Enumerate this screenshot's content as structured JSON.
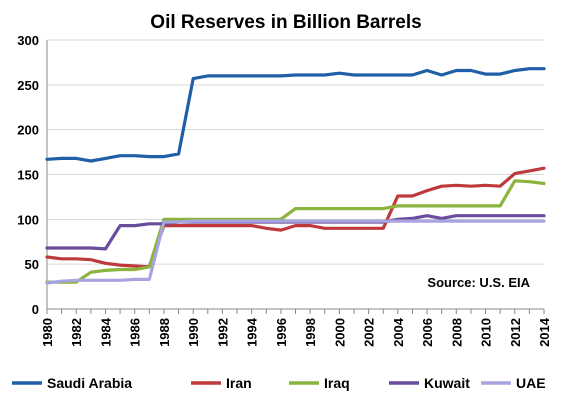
{
  "chart_data": {
    "type": "line",
    "title": "Oil Reserves in Billion Barrels",
    "xlabel": "",
    "ylabel": "",
    "xlim": [
      1980,
      2014
    ],
    "ylim": [
      0,
      300
    ],
    "grid": true,
    "legend_position": "bottom",
    "annotation": "Source: U.S. EIA",
    "x_ticks": [
      "1980",
      "1982",
      "1984",
      "1986",
      "1988",
      "1990",
      "1992",
      "1994",
      "1996",
      "1998",
      "2000",
      "2002",
      "2004",
      "2006",
      "2008",
      "2010",
      "2012",
      "2014"
    ],
    "y_ticks": [
      "0",
      "50",
      "100",
      "150",
      "200",
      "250",
      "300"
    ],
    "x": [
      1980,
      1981,
      1982,
      1983,
      1984,
      1985,
      1986,
      1987,
      1988,
      1989,
      1990,
      1991,
      1992,
      1993,
      1994,
      1995,
      1996,
      1997,
      1998,
      1999,
      2000,
      2001,
      2002,
      2003,
      2004,
      2005,
      2006,
      2007,
      2008,
      2009,
      2010,
      2011,
      2012,
      2013,
      2014
    ],
    "series": [
      {
        "name": "Saudi Arabia",
        "color": "#1f5fa8",
        "values": [
          167,
          168,
          168,
          165,
          168,
          171,
          171,
          170,
          170,
          173,
          257,
          260,
          260,
          260,
          260,
          260,
          260,
          261,
          261,
          261,
          263,
          261,
          261,
          261,
          261,
          261,
          266,
          261,
          266,
          266,
          262,
          262,
          266,
          268,
          268
        ]
      },
      {
        "name": "Iran",
        "color": "#be3a3a",
        "values": [
          58,
          56,
          56,
          55,
          51,
          49,
          48,
          47,
          93,
          93,
          93,
          93,
          93,
          93,
          93,
          90,
          88,
          93,
          93,
          90,
          90,
          90,
          90,
          90,
          126,
          126,
          132,
          137,
          138,
          137,
          138,
          137,
          151,
          154,
          157
        ]
      },
      {
        "name": "Iraq",
        "color": "#8ab43e",
        "values": [
          30,
          30,
          30,
          41,
          43,
          44,
          44,
          47,
          100,
          100,
          100,
          100,
          100,
          100,
          100,
          100,
          100,
          112,
          112,
          112,
          112,
          112,
          112,
          112,
          115,
          115,
          115,
          115,
          115,
          115,
          115,
          115,
          143,
          142,
          140
        ]
      },
      {
        "name": "Kuwait",
        "color": "#6a4c9c",
        "values": [
          68,
          68,
          68,
          68,
          67,
          93,
          93,
          95,
          95,
          97,
          97,
          97,
          97,
          97,
          97,
          97,
          97,
          97,
          97,
          97,
          97,
          97,
          97,
          97,
          100,
          101,
          104,
          101,
          104,
          104,
          104,
          104,
          104,
          104,
          104
        ]
      },
      {
        "name": "UAE",
        "color": "#a7a4e0",
        "values": [
          29,
          31,
          32,
          32,
          32,
          32,
          33,
          33,
          97,
          97,
          98,
          98,
          98,
          98,
          98,
          98,
          98,
          98,
          98,
          98,
          98,
          98,
          98,
          98,
          98,
          98,
          98,
          98,
          98,
          98,
          98,
          98,
          98,
          98,
          98
        ]
      }
    ]
  }
}
